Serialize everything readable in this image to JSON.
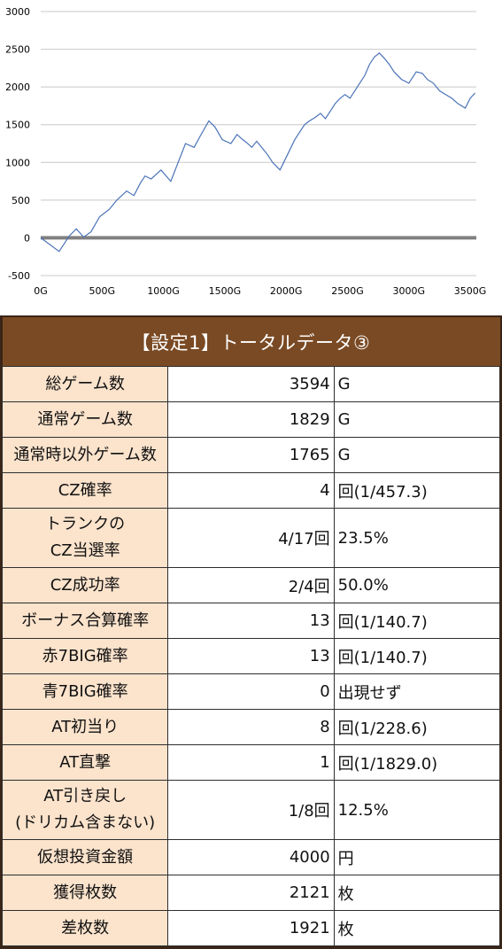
{
  "chart_data": {
    "type": "line",
    "x_ticks": [
      "0G",
      "500G",
      "1000G",
      "1500G",
      "2000G",
      "2500G",
      "3000G",
      "3500G"
    ],
    "x_tick_values": [
      0,
      500,
      1000,
      1500,
      2000,
      2500,
      3000,
      3500
    ],
    "y_ticks": [
      "3000",
      "2500",
      "2000",
      "1500",
      "1000",
      "500",
      "0",
      "-500"
    ],
    "y_tick_values": [
      3000,
      2500,
      2000,
      1500,
      1000,
      500,
      0,
      -500
    ],
    "xlim": [
      0,
      3550
    ],
    "ylim": [
      -500,
      3000
    ],
    "grid": true,
    "colors": {
      "line": "#4a72b8",
      "zero_line": "#808080",
      "grid": "#c8c8c8"
    },
    "series": [
      {
        "x": [
          0,
          150,
          230,
          290,
          350,
          410,
          480,
          560,
          620,
          700,
          760,
          810,
          850,
          900,
          980,
          1060,
          1120,
          1180,
          1250,
          1300,
          1370,
          1420,
          1480,
          1550,
          1600,
          1640,
          1680,
          1720,
          1760,
          1800,
          1850,
          1890,
          1950,
          2010,
          2070,
          2110,
          2150,
          2190,
          2240,
          2280,
          2320,
          2360,
          2400,
          2440,
          2480,
          2520,
          2560,
          2600,
          2640,
          2680,
          2720,
          2760,
          2800,
          2840,
          2880,
          2940,
          3000,
          3060,
          3110,
          3150,
          3200,
          3250,
          3300,
          3350,
          3400,
          3460,
          3500,
          3540
        ],
        "y": [
          0,
          -180,
          20,
          120,
          10,
          80,
          280,
          380,
          500,
          620,
          560,
          720,
          820,
          780,
          900,
          750,
          1000,
          1250,
          1200,
          1350,
          1550,
          1470,
          1300,
          1250,
          1370,
          1310,
          1260,
          1200,
          1280,
          1200,
          1100,
          1000,
          900,
          1100,
          1300,
          1400,
          1500,
          1550,
          1600,
          1650,
          1580,
          1680,
          1780,
          1850,
          1900,
          1850,
          1950,
          2050,
          2150,
          2300,
          2400,
          2450,
          2380,
          2300,
          2200,
          2100,
          2050,
          2200,
          2180,
          2100,
          2050,
          1950,
          1900,
          1850,
          1780,
          1720,
          1850,
          1920
        ]
      }
    ]
  },
  "table": {
    "title": "【設定1】トータルデータ③",
    "rows": [
      {
        "label": "総ゲーム数",
        "value": "3594",
        "unit": "G"
      },
      {
        "label": "通常ゲーム数",
        "value": "1829",
        "unit": "G"
      },
      {
        "label": "通常時以外ゲーム数",
        "value": "1765",
        "unit": "G"
      },
      {
        "label": "CZ確率",
        "value": "4",
        "unit": "回(1/457.3)"
      },
      {
        "label": "トランクの",
        "label2": "CZ当選率",
        "value": "4/17回",
        "unit": "23.5%"
      },
      {
        "label": "CZ成功率",
        "value": "2/4回",
        "unit": "50.0%"
      },
      {
        "label": "ボーナス合算確率",
        "value": "13",
        "unit": "回(1/140.7)"
      },
      {
        "label": "赤7BIG確率",
        "value": "13",
        "unit": "回(1/140.7)"
      },
      {
        "label": "青7BIG確率",
        "value": "0",
        "unit": "出現せず"
      },
      {
        "label": "AT初当り",
        "value": "8",
        "unit": "回(1/228.6)"
      },
      {
        "label": "AT直撃",
        "value": "1",
        "unit": "回(1/1829.0)"
      },
      {
        "label": "AT引き戻し",
        "label2": "(ドリカム含まない)",
        "value": "1/8回",
        "unit": "12.5%"
      },
      {
        "label": "仮想投資金額",
        "value": "4000",
        "unit": "円"
      },
      {
        "label": "獲得枚数",
        "value": "2121",
        "unit": "枚"
      },
      {
        "label": "差枚数",
        "value": "1921",
        "unit": "枚"
      }
    ]
  }
}
